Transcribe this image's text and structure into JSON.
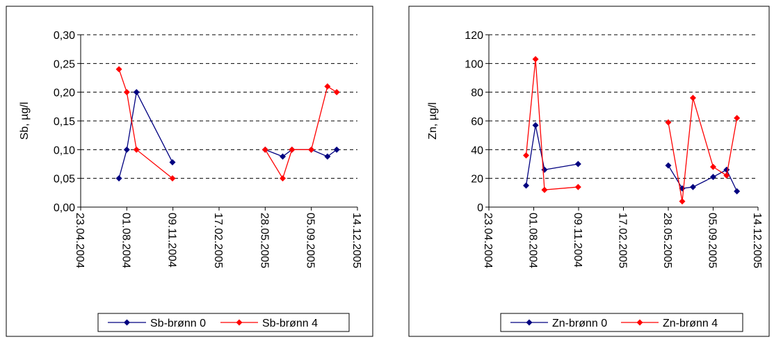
{
  "chart_data": [
    {
      "type": "line",
      "ylabel": "Sb, µg/l",
      "ylim": [
        0,
        0.3
      ],
      "yticks": [
        "0,00",
        "0,05",
        "0,10",
        "0,15",
        "0,20",
        "0,25",
        "0,30"
      ],
      "xlim": [
        "2004-04-23",
        "2005-12-14"
      ],
      "xticks": [
        "23.04.2004",
        "01.08.2004",
        "09.11.2004",
        "17.02.2005",
        "28.05.2005",
        "05.09.2005",
        "14.12.2005"
      ],
      "grid": "horizontal-dashed",
      "legend": "bottom",
      "series": [
        {
          "name": "Sb-brønn 0",
          "color": "#000080",
          "points": [
            {
              "x": "2004-07-15",
              "y": 0.05
            },
            {
              "x": "2004-08-01",
              "y": 0.1
            },
            {
              "x": "2004-08-22",
              "y": 0.2
            },
            {
              "x": "2004-11-08",
              "y": 0.078
            },
            {
              "x": null,
              "y": null
            },
            {
              "x": "2005-05-28",
              "y": 0.1
            },
            {
              "x": "2005-07-05",
              "y": 0.088
            },
            {
              "x": "2005-07-25",
              "y": 0.1
            },
            {
              "x": "2005-09-05",
              "y": 0.1
            },
            {
              "x": "2005-10-10",
              "y": 0.088
            },
            {
              "x": "2005-10-30",
              "y": 0.1
            }
          ]
        },
        {
          "name": "Sb-brønn 4",
          "color": "#ff0000",
          "points": [
            {
              "x": "2004-07-15",
              "y": 0.24
            },
            {
              "x": "2004-08-01",
              "y": 0.2
            },
            {
              "x": "2004-08-22",
              "y": 0.1
            },
            {
              "x": "2004-11-08",
              "y": 0.05
            },
            {
              "x": null,
              "y": null
            },
            {
              "x": "2005-05-28",
              "y": 0.1
            },
            {
              "x": "2005-07-05",
              "y": 0.05
            },
            {
              "x": "2005-07-25",
              "y": 0.1
            },
            {
              "x": "2005-09-05",
              "y": 0.1
            },
            {
              "x": "2005-10-10",
              "y": 0.21
            },
            {
              "x": "2005-10-30",
              "y": 0.2
            }
          ]
        }
      ]
    },
    {
      "type": "line",
      "ylabel": "Zn, µg/l",
      "ylim": [
        0,
        120
      ],
      "yticks": [
        "0",
        "20",
        "40",
        "60",
        "80",
        "100",
        "120"
      ],
      "xlim": [
        "2004-04-23",
        "2005-12-14"
      ],
      "xticks": [
        "23.04.2004",
        "01.08.2004",
        "09.11.2004",
        "17.02.2005",
        "28.05.2005",
        "05.09.2005",
        "14.12.2005"
      ],
      "grid": "horizontal-dashed",
      "legend": "bottom",
      "series": [
        {
          "name": "Zn-brønn 0",
          "color": "#000080",
          "points": [
            {
              "x": "2004-07-15",
              "y": 15
            },
            {
              "x": "2004-08-05",
              "y": 57
            },
            {
              "x": "2004-08-25",
              "y": 26
            },
            {
              "x": "2004-11-08",
              "y": 30
            },
            {
              "x": null,
              "y": null
            },
            {
              "x": "2005-05-28",
              "y": 29
            },
            {
              "x": "2005-06-28",
              "y": 13
            },
            {
              "x": "2005-07-22",
              "y": 14
            },
            {
              "x": "2005-09-05",
              "y": 21
            },
            {
              "x": "2005-10-05",
              "y": 26
            },
            {
              "x": "2005-10-28",
              "y": 11
            }
          ]
        },
        {
          "name": "Zn-brønn 4",
          "color": "#ff0000",
          "points": [
            {
              "x": "2004-07-15",
              "y": 36
            },
            {
              "x": "2004-08-05",
              "y": 103
            },
            {
              "x": "2004-08-25",
              "y": 12
            },
            {
              "x": "2004-11-08",
              "y": 14
            },
            {
              "x": null,
              "y": null
            },
            {
              "x": "2005-05-28",
              "y": 59
            },
            {
              "x": "2005-06-28",
              "y": 4
            },
            {
              "x": "2005-07-22",
              "y": 76
            },
            {
              "x": "2005-09-05",
              "y": 28
            },
            {
              "x": "2005-10-05",
              "y": 22
            },
            {
              "x": "2005-10-28",
              "y": 62
            }
          ]
        }
      ]
    }
  ]
}
